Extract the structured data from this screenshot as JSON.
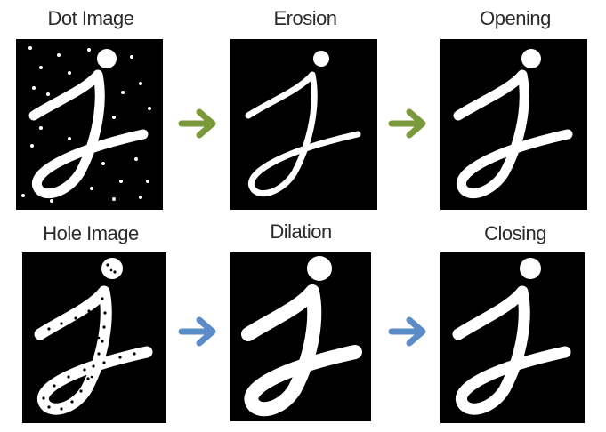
{
  "top_row": {
    "arrow_color": "#7a9a3a",
    "panels": [
      {
        "label": "Dot Image",
        "variant": "dots"
      },
      {
        "label": "Erosion",
        "variant": "thin"
      },
      {
        "label": "Opening",
        "variant": "clean"
      }
    ]
  },
  "bottom_row": {
    "arrow_color": "#5b8cc8",
    "panels": [
      {
        "label": "Hole Image",
        "variant": "holes"
      },
      {
        "label": "Dilation",
        "variant": "thick"
      },
      {
        "label": "Closing",
        "variant": "clean"
      }
    ]
  }
}
